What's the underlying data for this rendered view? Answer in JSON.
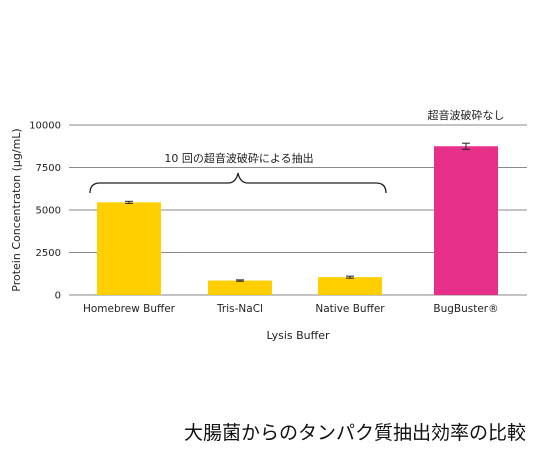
{
  "chart_data": {
    "type": "bar",
    "categories": [
      "Homebrew Buffer",
      "Tris-NaCl",
      "Native Buffer",
      "BugBuster®"
    ],
    "values": [
      5450,
      850,
      1050,
      8750
    ],
    "errors": [
      60,
      40,
      60,
      180
    ],
    "colors": [
      "#FFCF00",
      "#FFCF00",
      "#FFCF00",
      "#E6308A"
    ],
    "xlabel": "Lysis Buffer",
    "ylabel": "Protein Concentraton (μg/mL)",
    "ylim": [
      0,
      10000
    ],
    "yticks": [
      0,
      2500,
      5000,
      7500,
      10000
    ],
    "ytick_labels": [
      "0",
      "2500",
      "5000",
      "7500",
      "10000"
    ],
    "grid": true,
    "annotations": {
      "brace_label": "10 回の超音波破砕による抽出",
      "bugbuster_label": "超音波破砕なし"
    }
  },
  "caption": "大腸菌からのタンパク質抽出効率の比較"
}
